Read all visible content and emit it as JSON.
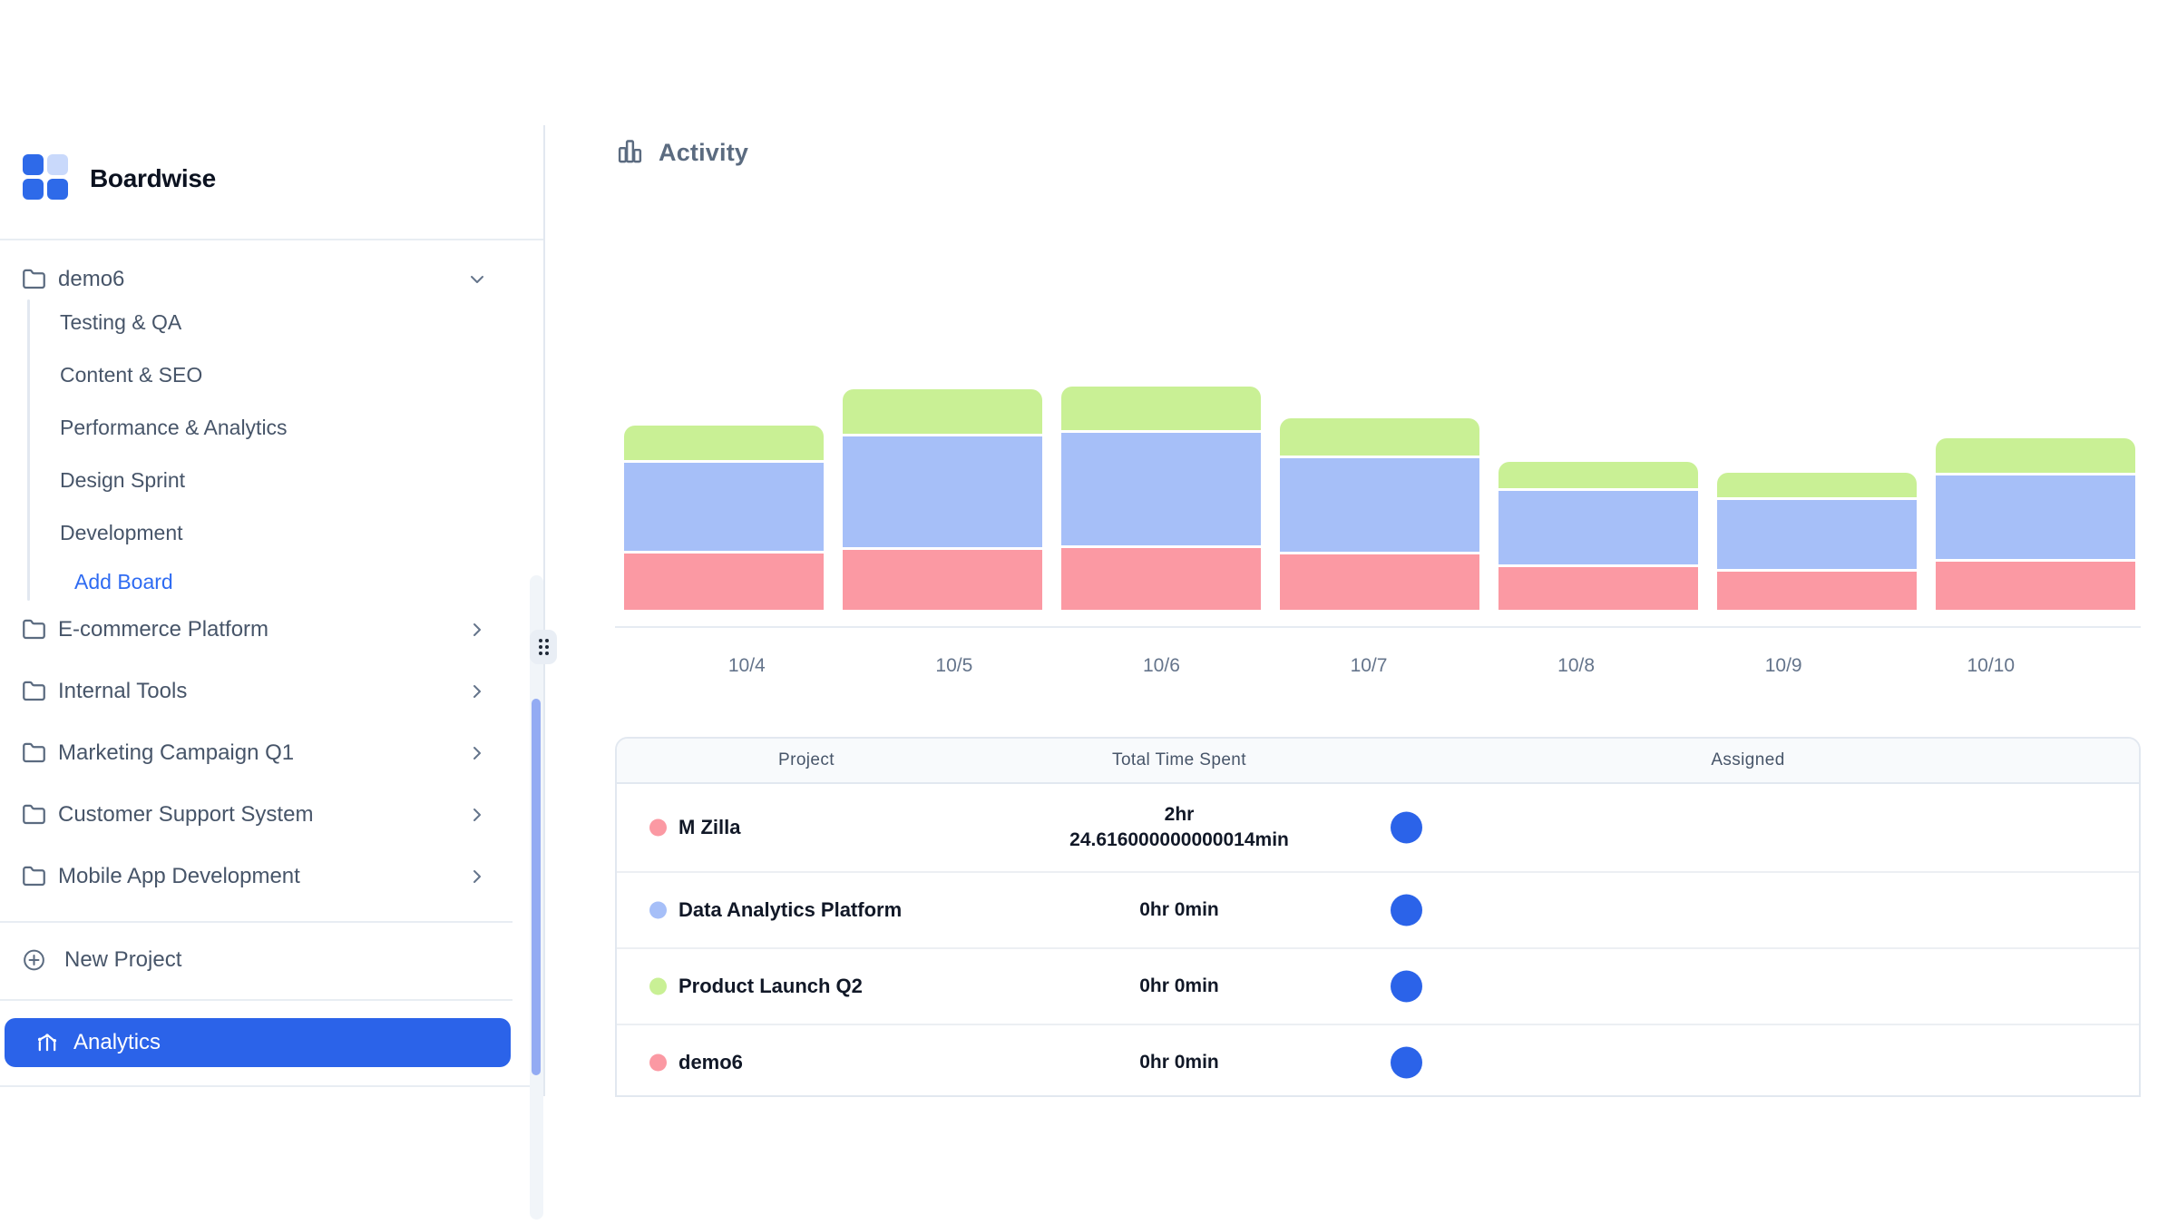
{
  "brand": {
    "name": "Boardwise"
  },
  "sidebar": {
    "active_project": {
      "label": "demo6",
      "boards": [
        "Testing & QA",
        "Content & SEO",
        "Performance & Analytics",
        "Design Sprint",
        "Development"
      ],
      "add_board_label": "Add Board"
    },
    "projects": [
      "E-commerce Platform",
      "Internal Tools",
      "Marketing Campaign Q1",
      "Customer Support System",
      "Mobile App Development"
    ],
    "new_project_label": "New Project",
    "analytics_label": "Analytics"
  },
  "main": {
    "activity_title": "Activity",
    "table": {
      "headers": [
        "Project",
        "Total Time Spent",
        "Assigned"
      ],
      "rows": [
        {
          "project": "M Zilla",
          "dot_color": "#fb99a3",
          "time_line1": "2hr",
          "time_line2": "24.616000000000014min"
        },
        {
          "project": "Data Analytics Platform",
          "dot_color": "#a6bff8",
          "time_line1": "0hr 0min",
          "time_line2": ""
        },
        {
          "project": "Product Launch Q2",
          "dot_color": "#c9f095",
          "time_line1": "0hr 0min",
          "time_line2": ""
        },
        {
          "project": "demo6",
          "dot_color": "#fb99a3",
          "time_line1": "0hr 0min",
          "time_line2": ""
        }
      ]
    }
  },
  "chart_data": {
    "type": "bar",
    "stacked": true,
    "title": "Activity",
    "xlabel": "",
    "ylabel": "",
    "legend": false,
    "y_axis": "unlabeled (relative activity, estimated from bar heights in px)",
    "categories": [
      "10/4",
      "10/5",
      "10/6",
      "10/7",
      "10/8",
      "10/9",
      "10/10"
    ],
    "series": [
      {
        "name": "M Zilla",
        "color": "#fb99a3",
        "values": [
          62,
          66,
          68,
          61,
          47,
          42,
          53
        ]
      },
      {
        "name": "Data Analytics Platform",
        "color": "#a6bff8",
        "values": [
          97,
          122,
          124,
          103,
          81,
          76,
          92
        ]
      },
      {
        "name": "Product Launch Q2",
        "color": "#c9f095",
        "values": [
          38,
          49,
          48,
          41,
          29,
          27,
          38
        ]
      }
    ]
  },
  "colors": {
    "accent": "#2b63e9",
    "link": "#2e6bf2",
    "logo-blue": "#2e6ae9",
    "logo-light": "#c9d9fb",
    "scroll": "#93abf3",
    "border": "#e2e8f0"
  }
}
